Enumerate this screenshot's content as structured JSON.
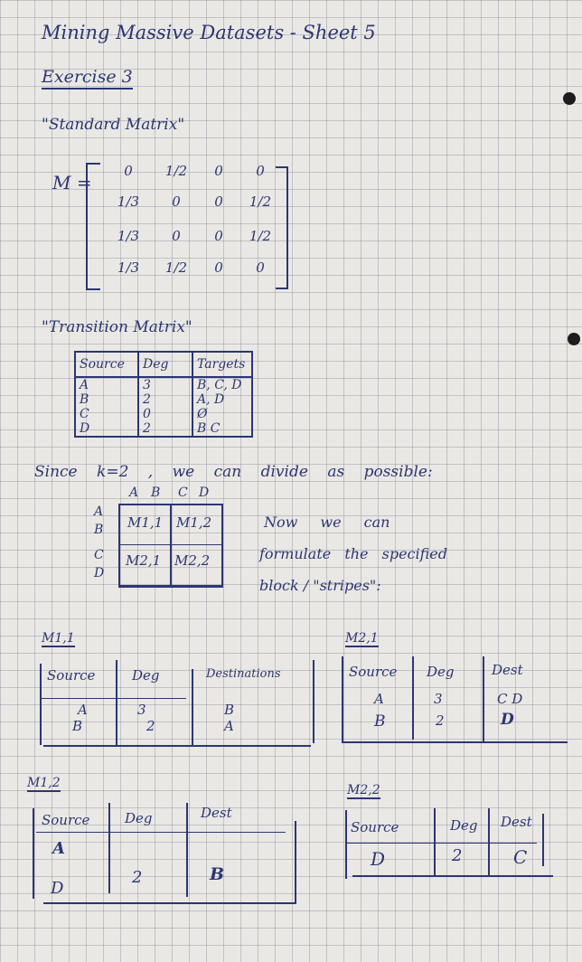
{
  "header": {
    "title": "Mining Massive Datasets - Sheet 5",
    "exercise": "Exercise 3"
  },
  "standard": {
    "label": "\"Standard Matrix\"",
    "matrix_name": "M =",
    "rows": [
      [
        "0",
        "1/2",
        "0",
        "0"
      ],
      [
        "1/3",
        "0",
        "0",
        "1/2"
      ],
      [
        "1/3",
        "0",
        "0",
        "1/2"
      ],
      [
        "1/3",
        "1/2",
        "0",
        "0"
      ]
    ]
  },
  "transition": {
    "label": "\"Transition Matrix\"",
    "headers": [
      "Source",
      "Deg",
      "Targets"
    ],
    "rows": [
      [
        "A",
        "3",
        "B, C, D"
      ],
      [
        "B",
        "2",
        "A, D"
      ],
      [
        "C",
        "0",
        "Ø"
      ],
      [
        "D",
        "2",
        "B C"
      ]
    ]
  },
  "blocks": {
    "sentence": "Since k=2 , we can divide as possible:",
    "col_labels": [
      "A",
      "B",
      "C",
      "D"
    ],
    "row_labels": [
      "A",
      "B",
      "C",
      "D"
    ],
    "cells": [
      "M1,1",
      "M1,2",
      "M2,1",
      "M2,2"
    ],
    "note_lines": [
      "Now we can",
      "formulate the specified",
      "block / \"stripes\":"
    ]
  },
  "m11": {
    "name": "M1,1",
    "headers": [
      "Source",
      "Deg",
      "Destinations"
    ],
    "rows": [
      [
        "A",
        "3",
        "B"
      ],
      [
        "B",
        "2",
        "A"
      ]
    ]
  },
  "m21": {
    "name": "M2,1",
    "headers": [
      "Source",
      "Deg",
      "Dest"
    ],
    "rows": [
      [
        "A",
        "3",
        "C D"
      ],
      [
        "B",
        "2",
        "D"
      ]
    ]
  },
  "m12": {
    "name": "M1,2",
    "headers": [
      "Source",
      "Deg",
      "Dest"
    ],
    "rows": [
      [
        "A",
        "",
        ""
      ],
      [
        "D",
        "2",
        "B"
      ]
    ]
  },
  "m22": {
    "name": "M2,2",
    "headers": [
      "Source",
      "Deg",
      "Dest"
    ],
    "rows": [
      [
        "D",
        "2",
        "C"
      ]
    ]
  }
}
